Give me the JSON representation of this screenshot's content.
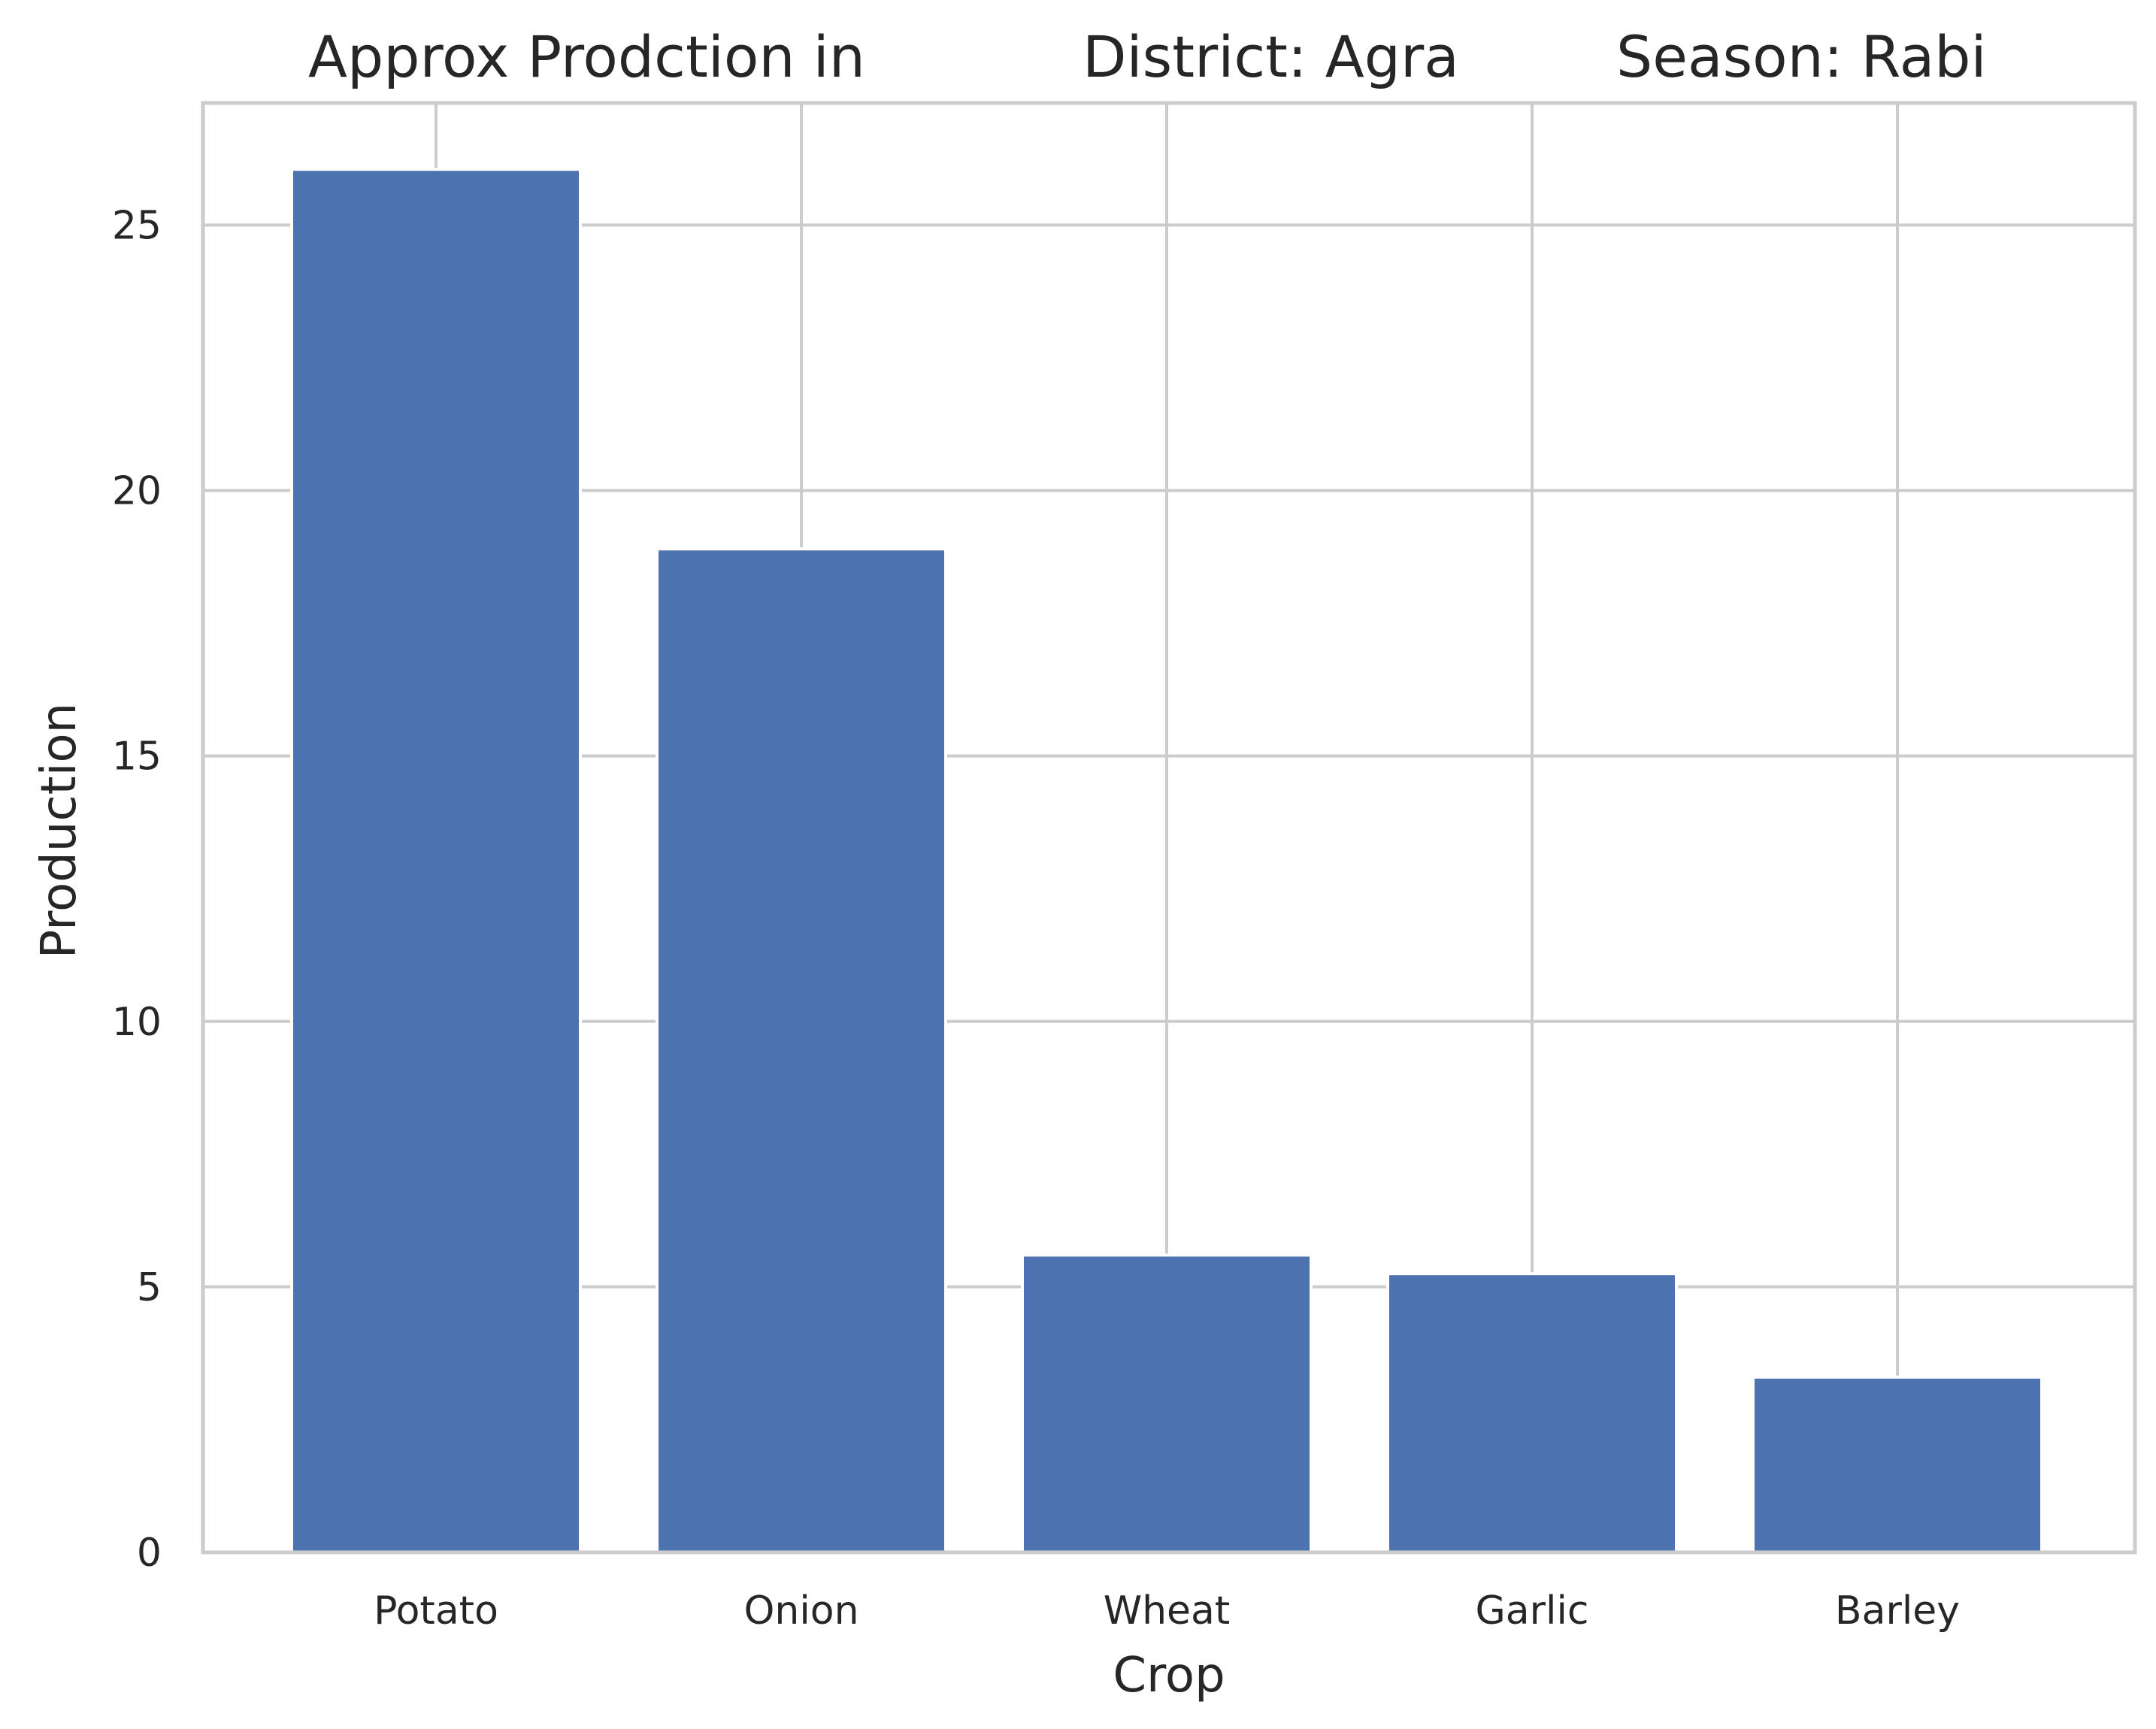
{
  "chart_data": {
    "type": "bar",
    "title_parts": [
      "Approx Prodction in",
      "District: Agra",
      "Season: Rabi"
    ],
    "xlabel": "Crop",
    "ylabel": "Production",
    "categories": [
      "Potato",
      "Onion",
      "Wheat",
      "Garlic",
      "Barley"
    ],
    "values": [
      26.05,
      18.9,
      5.6,
      5.25,
      3.3
    ],
    "ylim": [
      0,
      27.3
    ],
    "yticks": [
      0,
      5,
      10,
      15,
      20,
      25
    ],
    "grid": true,
    "bar_color": "#4c72b0",
    "grid_color": "#cccccc",
    "text_color": "#262626"
  }
}
